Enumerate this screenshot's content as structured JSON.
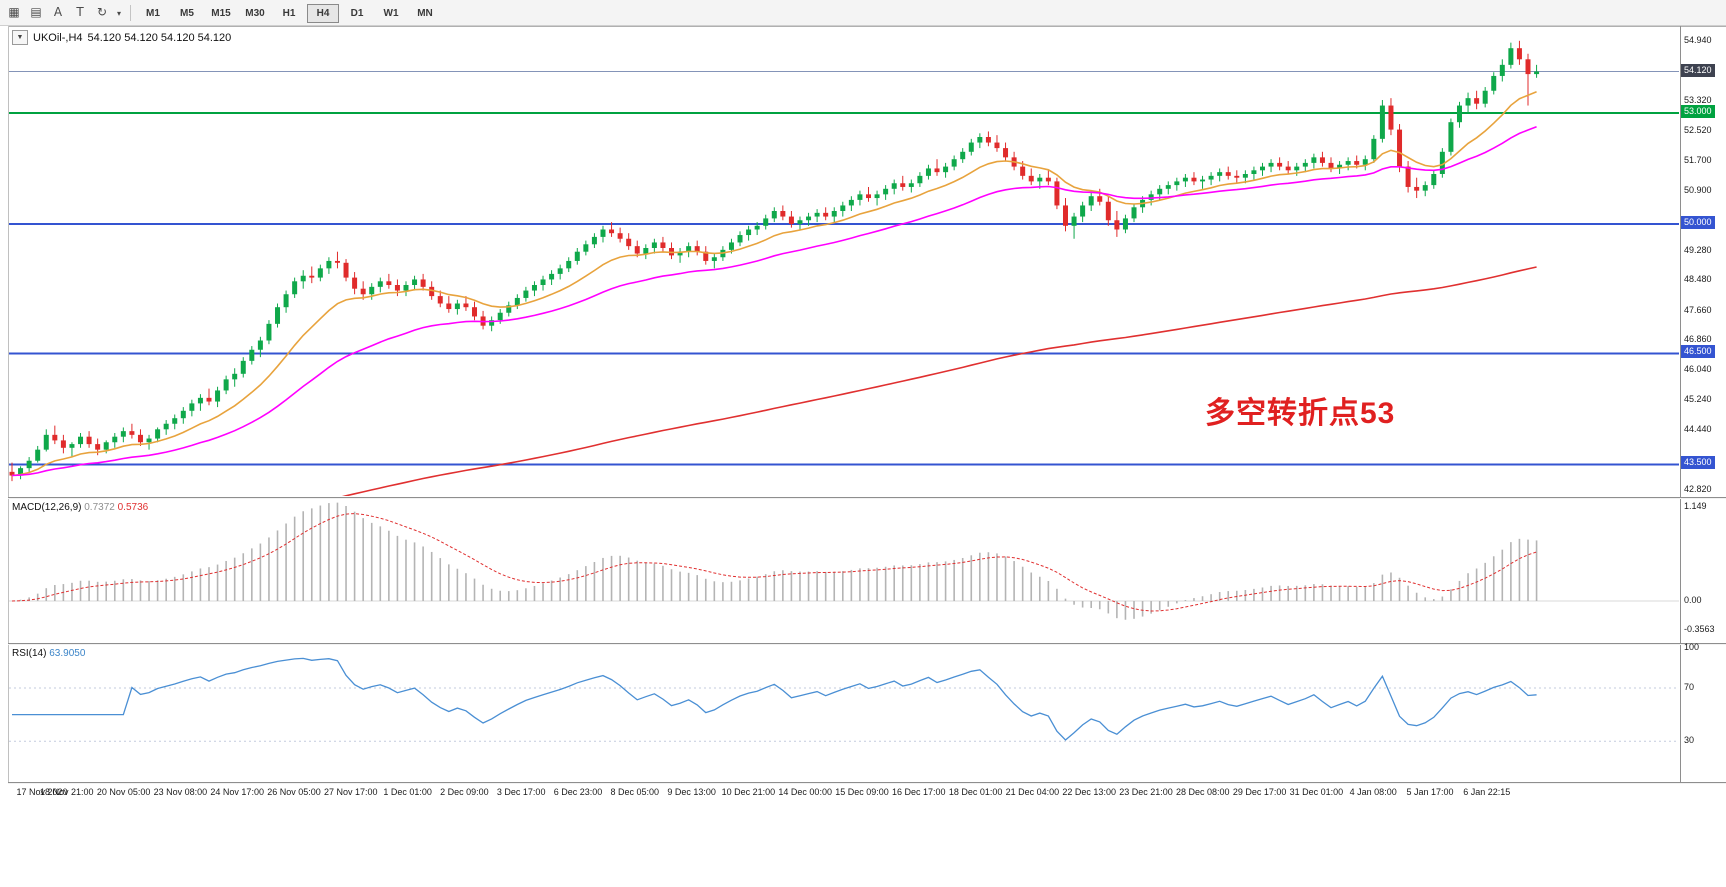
{
  "toolbar": {
    "icons": [
      {
        "name": "chart-window-icon",
        "glyph": "▦"
      },
      {
        "name": "bar-chart-icon",
        "glyph": "▤"
      },
      {
        "name": "arrow-tool-icon",
        "glyph": "A"
      },
      {
        "name": "text-tool-icon",
        "glyph": "T"
      },
      {
        "name": "cycles-icon",
        "glyph": "↻"
      },
      {
        "name": "dropdown-caret-icon",
        "glyph": "▾"
      }
    ],
    "timeframes": [
      "M1",
      "M5",
      "M15",
      "M30",
      "H1",
      "H4",
      "D1",
      "W1",
      "MN"
    ],
    "active_timeframe": "H4"
  },
  "chart": {
    "header": {
      "symbol_period": "UKOil-,H4",
      "ohlc": "54.120 54.120 54.120 54.120"
    },
    "annotation": "多空转折点53"
  },
  "macd": {
    "header": {
      "name": "MACD(12,26,9)",
      "main": "0.7372",
      "signal": "0.5736"
    },
    "axis": [
      "1.149",
      "0.00",
      "-0.3563"
    ]
  },
  "rsi": {
    "header": {
      "name": "RSI(14)",
      "value": "63.9050"
    },
    "axis": [
      "100",
      "70",
      "30"
    ]
  },
  "time_axis": [
    "17 Nov 2020",
    "18 Nov 21:00",
    "20 Nov 05:00",
    "23 Nov 08:00",
    "24 Nov 17:00",
    "26 Nov 05:00",
    "27 Nov 17:00",
    "1 Dec 01:00",
    "2 Dec 09:00",
    "3 Dec 17:00",
    "6 Dec 23:00",
    "8 Dec 05:00",
    "9 Dec 13:00",
    "10 Dec 21:00",
    "14 Dec 00:00",
    "15 Dec 09:00",
    "16 Dec 17:00",
    "18 Dec 01:00",
    "21 Dec 04:00",
    "22 Dec 13:00",
    "23 Dec 21:00",
    "28 Dec 08:00",
    "29 Dec 17:00",
    "31 Dec 01:00",
    "4 Jan 08:00",
    "5 Jan 17:00",
    "6 Jan 22:15"
  ],
  "chart_data": {
    "type": "candlestick",
    "symbol": "UKOil-",
    "timeframe": "H4",
    "current_ohlc": [
      54.12,
      54.12,
      54.12,
      54.12
    ],
    "price_axis_ticks": [
      "54.940",
      "53.320",
      "52.520",
      "51.700",
      "50.900",
      "49.280",
      "48.480",
      "47.660",
      "46.860",
      "46.040",
      "45.240",
      "44.440",
      "42.820"
    ],
    "levels": [
      {
        "price": 54.12,
        "label": "54.120",
        "type": "bid"
      },
      {
        "price": 53.0,
        "label": "53.000",
        "type": "line",
        "color": "#00a240"
      },
      {
        "price": 50.0,
        "label": "50.000",
        "type": "line",
        "color": "#3454d1"
      },
      {
        "price": 46.5,
        "label": "46.500",
        "type": "line",
        "color": "#3454d1"
      },
      {
        "price": 43.5,
        "label": "43.500",
        "type": "line",
        "color": "#3454d1"
      }
    ],
    "colors": {
      "up": "#0fa84a",
      "down": "#e02b2b",
      "macd_hist": "#b4b4b4",
      "macd_signal": "#e03030",
      "rsi": "#4a8fd4",
      "bid_line": "#8494b8",
      "bid_box": "#3e4250",
      "rsi_levels": "#c3cbdd",
      "macd_zero": "#d8d8d8"
    },
    "indicators": {
      "ma": [
        {
          "name": "ma-fast",
          "period": 13,
          "color": "#e8a33d"
        },
        {
          "name": "ma-mid",
          "period": 34,
          "color": "#ff00ff"
        },
        {
          "name": "ma-slow",
          "alpha": 0.0095,
          "seed": 41.2,
          "color": "#e03030"
        }
      ],
      "macd": {
        "fast": 12,
        "slow": 26,
        "signal": 9
      },
      "rsi": {
        "period": 14,
        "levels": [
          70,
          30
        ]
      }
    },
    "candles": [
      [
        43.3,
        43.55,
        43.05,
        43.2
      ],
      [
        43.2,
        43.45,
        43.1,
        43.4
      ],
      [
        43.4,
        43.7,
        43.3,
        43.6
      ],
      [
        43.6,
        44.0,
        43.55,
        43.9
      ],
      [
        43.9,
        44.45,
        43.85,
        44.3
      ],
      [
        44.3,
        44.55,
        44.05,
        44.15
      ],
      [
        44.15,
        44.3,
        43.8,
        43.95
      ],
      [
        43.95,
        44.1,
        43.7,
        44.05
      ],
      [
        44.05,
        44.35,
        43.95,
        44.25
      ],
      [
        44.25,
        44.4,
        43.95,
        44.05
      ],
      [
        44.05,
        44.2,
        43.75,
        43.9
      ],
      [
        43.9,
        44.15,
        43.8,
        44.1
      ],
      [
        44.1,
        44.35,
        43.95,
        44.25
      ],
      [
        44.25,
        44.5,
        44.1,
        44.4
      ],
      [
        44.4,
        44.6,
        44.2,
        44.3
      ],
      [
        44.3,
        44.45,
        44.0,
        44.1
      ],
      [
        44.1,
        44.3,
        43.9,
        44.2
      ],
      [
        44.2,
        44.5,
        44.1,
        44.45
      ],
      [
        44.45,
        44.7,
        44.3,
        44.6
      ],
      [
        44.6,
        44.85,
        44.45,
        44.75
      ],
      [
        44.75,
        45.05,
        44.6,
        44.95
      ],
      [
        44.95,
        45.25,
        44.8,
        45.15
      ],
      [
        45.15,
        45.4,
        44.95,
        45.3
      ],
      [
        45.3,
        45.55,
        45.1,
        45.2
      ],
      [
        45.2,
        45.6,
        45.05,
        45.5
      ],
      [
        45.5,
        45.9,
        45.4,
        45.8
      ],
      [
        45.8,
        46.1,
        45.6,
        45.95
      ],
      [
        45.95,
        46.4,
        45.85,
        46.3
      ],
      [
        46.3,
        46.7,
        46.2,
        46.6
      ],
      [
        46.6,
        46.95,
        46.4,
        46.85
      ],
      [
        46.85,
        47.4,
        46.75,
        47.3
      ],
      [
        47.3,
        47.85,
        47.2,
        47.75
      ],
      [
        47.75,
        48.2,
        47.6,
        48.1
      ],
      [
        48.1,
        48.55,
        48.0,
        48.45
      ],
      [
        48.45,
        48.75,
        48.25,
        48.6
      ],
      [
        48.6,
        48.85,
        48.4,
        48.55
      ],
      [
        48.55,
        48.9,
        48.45,
        48.8
      ],
      [
        48.8,
        49.1,
        48.65,
        49.0
      ],
      [
        49.0,
        49.25,
        48.8,
        48.95
      ],
      [
        48.95,
        49.05,
        48.45,
        48.55
      ],
      [
        48.55,
        48.7,
        48.1,
        48.25
      ],
      [
        48.25,
        48.45,
        47.95,
        48.1
      ],
      [
        48.1,
        48.4,
        47.95,
        48.3
      ],
      [
        48.3,
        48.55,
        48.15,
        48.45
      ],
      [
        48.45,
        48.65,
        48.25,
        48.35
      ],
      [
        48.35,
        48.5,
        48.05,
        48.2
      ],
      [
        48.2,
        48.45,
        48.05,
        48.35
      ],
      [
        48.35,
        48.6,
        48.2,
        48.5
      ],
      [
        48.5,
        48.65,
        48.2,
        48.3
      ],
      [
        48.3,
        48.45,
        47.95,
        48.05
      ],
      [
        48.05,
        48.2,
        47.75,
        47.85
      ],
      [
        47.85,
        48.05,
        47.6,
        47.7
      ],
      [
        47.7,
        47.95,
        47.55,
        47.85
      ],
      [
        47.85,
        48.05,
        47.65,
        47.75
      ],
      [
        47.75,
        47.9,
        47.4,
        47.5
      ],
      [
        47.5,
        47.65,
        47.15,
        47.25
      ],
      [
        47.25,
        47.5,
        47.1,
        47.4
      ],
      [
        47.4,
        47.7,
        47.3,
        47.6
      ],
      [
        47.6,
        47.9,
        47.5,
        47.8
      ],
      [
        47.8,
        48.1,
        47.7,
        48.0
      ],
      [
        48.0,
        48.3,
        47.9,
        48.2
      ],
      [
        48.2,
        48.45,
        48.05,
        48.35
      ],
      [
        48.35,
        48.6,
        48.2,
        48.5
      ],
      [
        48.5,
        48.75,
        48.35,
        48.65
      ],
      [
        48.65,
        48.9,
        48.5,
        48.8
      ],
      [
        48.8,
        49.1,
        48.7,
        49.0
      ],
      [
        49.0,
        49.35,
        48.9,
        49.25
      ],
      [
        49.25,
        49.55,
        49.15,
        49.45
      ],
      [
        49.45,
        49.75,
        49.35,
        49.65
      ],
      [
        49.65,
        49.95,
        49.5,
        49.85
      ],
      [
        49.85,
        50.05,
        49.65,
        49.75
      ],
      [
        49.75,
        49.9,
        49.5,
        49.6
      ],
      [
        49.6,
        49.75,
        49.3,
        49.4
      ],
      [
        49.4,
        49.55,
        49.1,
        49.2
      ],
      [
        49.2,
        49.45,
        49.05,
        49.35
      ],
      [
        49.35,
        49.6,
        49.2,
        49.5
      ],
      [
        49.5,
        49.65,
        49.25,
        49.35
      ],
      [
        49.35,
        49.5,
        49.05,
        49.15
      ],
      [
        49.15,
        49.35,
        48.95,
        49.25
      ],
      [
        49.25,
        49.5,
        49.1,
        49.4
      ],
      [
        49.4,
        49.55,
        49.15,
        49.25
      ],
      [
        49.25,
        49.4,
        48.9,
        49.0
      ],
      [
        49.0,
        49.2,
        48.8,
        49.1
      ],
      [
        49.1,
        49.4,
        49.0,
        49.3
      ],
      [
        49.3,
        49.6,
        49.2,
        49.5
      ],
      [
        49.5,
        49.8,
        49.4,
        49.7
      ],
      [
        49.7,
        49.95,
        49.55,
        49.85
      ],
      [
        49.85,
        50.05,
        49.7,
        49.95
      ],
      [
        49.95,
        50.25,
        49.85,
        50.15
      ],
      [
        50.15,
        50.45,
        50.05,
        50.35
      ],
      [
        50.35,
        50.5,
        50.1,
        50.2
      ],
      [
        50.2,
        50.35,
        49.9,
        50.0
      ],
      [
        50.0,
        50.2,
        49.85,
        50.1
      ],
      [
        50.1,
        50.3,
        49.95,
        50.2
      ],
      [
        50.2,
        50.4,
        50.05,
        50.3
      ],
      [
        50.3,
        50.45,
        50.1,
        50.2
      ],
      [
        50.2,
        50.45,
        50.05,
        50.35
      ],
      [
        50.35,
        50.6,
        50.2,
        50.5
      ],
      [
        50.5,
        50.75,
        50.35,
        50.65
      ],
      [
        50.65,
        50.9,
        50.5,
        50.8
      ],
      [
        50.8,
        51.0,
        50.6,
        50.7
      ],
      [
        50.7,
        50.9,
        50.5,
        50.8
      ],
      [
        50.8,
        51.05,
        50.65,
        50.95
      ],
      [
        50.95,
        51.2,
        50.8,
        51.1
      ],
      [
        51.1,
        51.3,
        50.9,
        51.0
      ],
      [
        51.0,
        51.2,
        50.85,
        51.1
      ],
      [
        51.1,
        51.4,
        51.0,
        51.3
      ],
      [
        51.3,
        51.6,
        51.2,
        51.5
      ],
      [
        51.5,
        51.75,
        51.3,
        51.4
      ],
      [
        51.4,
        51.65,
        51.25,
        51.55
      ],
      [
        51.55,
        51.85,
        51.45,
        51.75
      ],
      [
        51.75,
        52.05,
        51.65,
        51.95
      ],
      [
        51.95,
        52.3,
        51.85,
        52.2
      ],
      [
        52.2,
        52.45,
        52.05,
        52.35
      ],
      [
        52.35,
        52.5,
        52.1,
        52.2
      ],
      [
        52.2,
        52.4,
        51.95,
        52.05
      ],
      [
        52.05,
        52.2,
        51.7,
        51.8
      ],
      [
        51.8,
        51.95,
        51.45,
        51.55
      ],
      [
        51.55,
        51.7,
        51.2,
        51.3
      ],
      [
        51.3,
        51.5,
        51.05,
        51.15
      ],
      [
        51.15,
        51.35,
        50.95,
        51.25
      ],
      [
        51.25,
        51.45,
        51.05,
        51.15
      ],
      [
        51.15,
        51.25,
        50.4,
        50.5
      ],
      [
        50.5,
        50.7,
        49.8,
        49.95
      ],
      [
        49.95,
        50.3,
        49.6,
        50.2
      ],
      [
        50.2,
        50.6,
        50.05,
        50.5
      ],
      [
        50.5,
        50.85,
        50.35,
        50.75
      ],
      [
        50.75,
        50.95,
        50.5,
        50.6
      ],
      [
        50.6,
        50.75,
        49.95,
        50.1
      ],
      [
        50.1,
        50.35,
        49.65,
        49.85
      ],
      [
        49.85,
        50.25,
        49.75,
        50.15
      ],
      [
        50.15,
        50.55,
        50.05,
        50.45
      ],
      [
        50.45,
        50.75,
        50.3,
        50.65
      ],
      [
        50.65,
        50.9,
        50.5,
        50.8
      ],
      [
        50.8,
        51.05,
        50.65,
        50.95
      ],
      [
        50.95,
        51.15,
        50.8,
        51.05
      ],
      [
        51.05,
        51.25,
        50.9,
        51.15
      ],
      [
        51.15,
        51.35,
        51.0,
        51.25
      ],
      [
        51.25,
        51.4,
        51.05,
        51.15
      ],
      [
        51.15,
        51.3,
        50.95,
        51.2
      ],
      [
        51.2,
        51.4,
        51.05,
        51.3
      ],
      [
        51.3,
        51.5,
        51.15,
        51.4
      ],
      [
        51.4,
        51.55,
        51.2,
        51.3
      ],
      [
        51.3,
        51.45,
        51.1,
        51.25
      ],
      [
        51.25,
        51.45,
        51.1,
        51.35
      ],
      [
        51.35,
        51.55,
        51.2,
        51.45
      ],
      [
        51.45,
        51.65,
        51.3,
        51.55
      ],
      [
        51.55,
        51.75,
        51.4,
        51.65
      ],
      [
        51.65,
        51.8,
        51.45,
        51.55
      ],
      [
        51.55,
        51.7,
        51.35,
        51.45
      ],
      [
        51.45,
        51.65,
        51.3,
        51.55
      ],
      [
        51.55,
        51.75,
        51.4,
        51.65
      ],
      [
        51.65,
        51.9,
        51.5,
        51.8
      ],
      [
        51.8,
        51.95,
        51.55,
        51.65
      ],
      [
        51.65,
        51.8,
        51.4,
        51.5
      ],
      [
        51.5,
        51.7,
        51.35,
        51.6
      ],
      [
        51.6,
        51.8,
        51.45,
        51.7
      ],
      [
        51.7,
        51.85,
        51.5,
        51.6
      ],
      [
        51.6,
        51.85,
        51.45,
        51.75
      ],
      [
        51.75,
        52.4,
        51.65,
        52.3
      ],
      [
        52.3,
        53.35,
        52.2,
        53.2
      ],
      [
        53.2,
        53.4,
        52.4,
        52.55
      ],
      [
        52.55,
        52.7,
        51.4,
        51.55
      ],
      [
        51.55,
        51.7,
        50.85,
        51.0
      ],
      [
        51.0,
        51.25,
        50.7,
        50.9
      ],
      [
        50.9,
        51.15,
        50.75,
        51.05
      ],
      [
        51.05,
        51.45,
        50.95,
        51.35
      ],
      [
        51.35,
        52.05,
        51.25,
        51.95
      ],
      [
        51.95,
        52.85,
        51.85,
        52.75
      ],
      [
        52.75,
        53.3,
        52.6,
        53.2
      ],
      [
        53.2,
        53.55,
        53.0,
        53.4
      ],
      [
        53.4,
        53.6,
        53.1,
        53.25
      ],
      [
        53.25,
        53.7,
        53.15,
        53.6
      ],
      [
        53.6,
        54.1,
        53.5,
        54.0
      ],
      [
        54.0,
        54.45,
        53.85,
        54.3
      ],
      [
        54.3,
        54.9,
        54.2,
        54.75
      ],
      [
        54.75,
        54.95,
        54.3,
        54.45
      ],
      [
        54.45,
        54.6,
        53.2,
        54.05
      ],
      [
        54.05,
        54.3,
        53.95,
        54.12
      ]
    ]
  }
}
